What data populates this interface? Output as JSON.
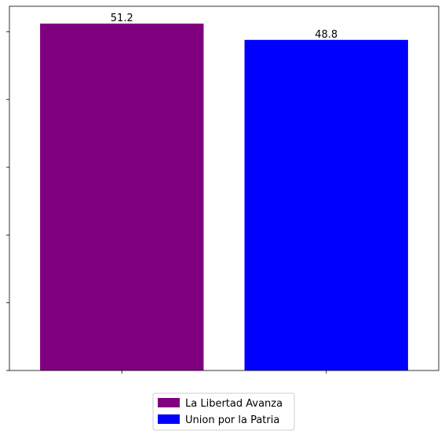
{
  "chart_data": {
    "type": "bar",
    "categories": [
      "La Libertad Avanza",
      "Union por la Patria"
    ],
    "values": [
      51.2,
      48.8
    ],
    "value_labels": [
      "51.2",
      "48.8"
    ],
    "colors": [
      "#800080",
      "#0000ff"
    ],
    "ylim": [
      0,
      53.76
    ],
    "y_ticks": [
      0,
      10,
      20,
      30,
      40,
      50
    ],
    "x_tick_labels": [
      "",
      ""
    ],
    "title": "",
    "xlabel": "",
    "ylabel": "",
    "grid": false,
    "legend": {
      "placement": "bottom-center",
      "entries": [
        {
          "label": "La Libertad Avanza",
          "color": "#800080"
        },
        {
          "label": "Union por la Patria",
          "color": "#0000ff"
        }
      ]
    }
  }
}
